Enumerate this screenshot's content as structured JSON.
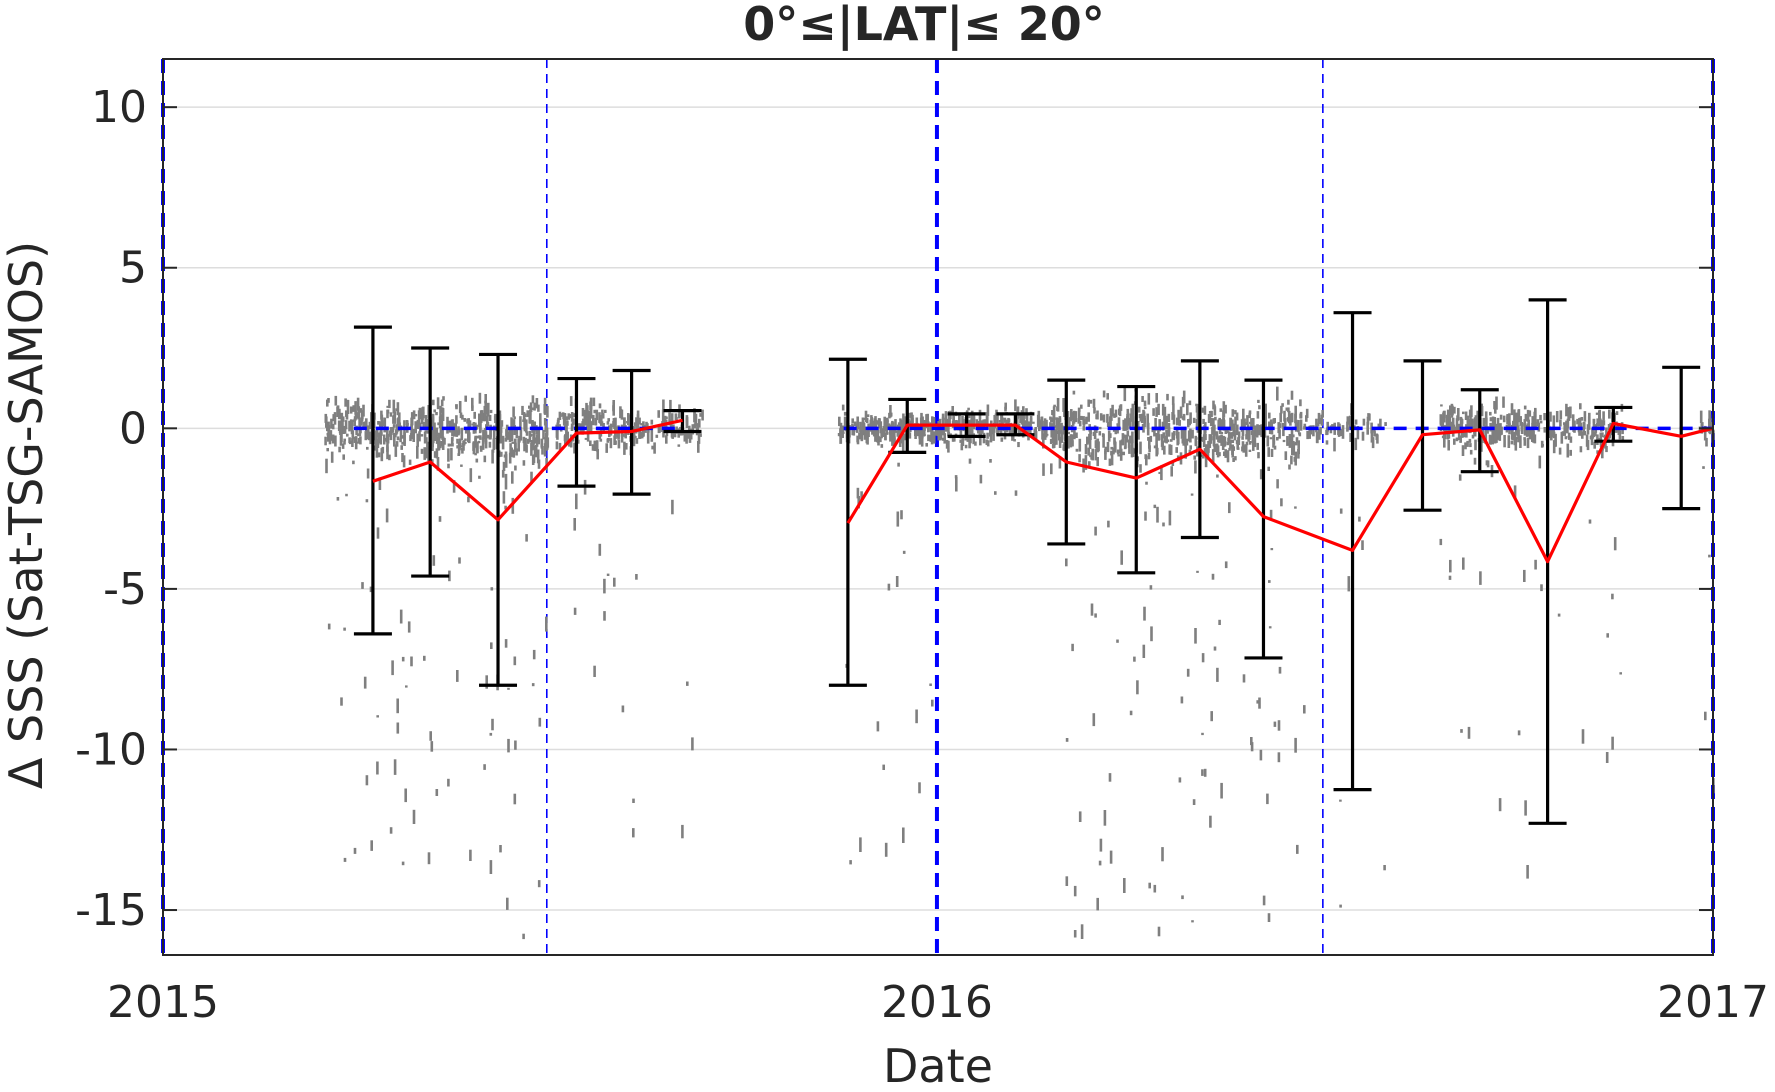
{
  "chart_data": {
    "type": "line",
    "title": "0°≤|LAT|≤ 20°",
    "xlabel": "Date",
    "ylabel": "Δ SSS (Sat-TSG-SAMOS)",
    "xlim": [
      "2015-01-01",
      "2017-01-01"
    ],
    "ylim": [
      -16.4,
      11.5
    ],
    "x_ticks": [
      {
        "date": "2015-01-01",
        "label": "2015"
      },
      {
        "date": "2016-01-01",
        "label": "2016"
      },
      {
        "date": "2017-01-01",
        "label": "2017"
      }
    ],
    "y_ticks": [
      {
        "value": 10,
        "label": "10"
      },
      {
        "value": 5,
        "label": "5"
      },
      {
        "value": 0,
        "label": "0"
      },
      {
        "value": -5,
        "label": "-5"
      },
      {
        "value": -10,
        "label": "-10"
      },
      {
        "value": -15,
        "label": "-15"
      }
    ],
    "grid": "horizontal",
    "colors": {
      "mean_line": "#ff0000",
      "error_bars": "#000000",
      "points": "#7f7f7f",
      "reference_lines": "#0000ff",
      "grid": "#dddddd",
      "axes": "#262626"
    },
    "vertical_markers": [
      {
        "date": "2015-01-01",
        "style": "thick-dashed"
      },
      {
        "date": "2015-07-01",
        "style": "thin-dashed"
      },
      {
        "date": "2016-01-01",
        "style": "thick-dashed"
      },
      {
        "date": "2016-07-01",
        "style": "thin-dashed"
      },
      {
        "date": "2017-01-01",
        "style": "thick-dashed"
      }
    ],
    "zero_reference": {
      "y": 0,
      "segments": [
        {
          "start": "2015-04-01",
          "end": "2015-09-01"
        },
        {
          "start": "2015-11-18",
          "end": "2017-01-01"
        }
      ]
    },
    "mean_series": [
      {
        "x": "2015-04-10",
        "y": -1.65
      },
      {
        "x": "2015-05-07",
        "y": -1.05
      },
      {
        "x": "2015-06-08",
        "y": -2.85
      },
      {
        "x": "2015-07-15",
        "y": -0.15
      },
      {
        "x": "2015-08-10",
        "y": -0.1
      },
      {
        "x": "2015-09-03",
        "y": 0.25
      }
    ],
    "mean_series_2": [
      {
        "x": "2015-11-20",
        "y": -2.95
      },
      {
        "x": "2015-12-18",
        "y": 0.1
      },
      {
        "x": "2016-01-15",
        "y": 0.1
      },
      {
        "x": "2016-02-07",
        "y": 0.1
      },
      {
        "x": "2016-03-02",
        "y": -1.05
      },
      {
        "x": "2016-04-04",
        "y": -1.55
      },
      {
        "x": "2016-05-04",
        "y": -0.65
      },
      {
        "x": "2016-06-03",
        "y": -2.75
      },
      {
        "x": "2016-07-15",
        "y": -3.8
      },
      {
        "x": "2016-08-17",
        "y": -0.2
      },
      {
        "x": "2016-09-13",
        "y": -0.05
      },
      {
        "x": "2016-10-15",
        "y": -4.15
      },
      {
        "x": "2016-11-15",
        "y": 0.15
      },
      {
        "x": "2016-12-17",
        "y": -0.25
      },
      {
        "x": "2017-01-01",
        "y": 0.0
      }
    ],
    "error_bars": [
      {
        "x": "2015-04-10",
        "low": -6.4,
        "high": 3.15
      },
      {
        "x": "2015-05-07",
        "low": -4.6,
        "high": 2.5
      },
      {
        "x": "2015-06-08",
        "low": -8.0,
        "high": 2.3
      },
      {
        "x": "2015-07-15",
        "low": -1.8,
        "high": 1.55
      },
      {
        "x": "2015-08-10",
        "low": -2.05,
        "high": 1.8
      },
      {
        "x": "2015-09-03",
        "low": -0.1,
        "high": 0.55
      },
      {
        "x": "2015-11-20",
        "low": -8.0,
        "high": 2.15
      },
      {
        "x": "2015-12-18",
        "low": -0.75,
        "high": 0.9
      },
      {
        "x": "2016-01-15",
        "low": -0.25,
        "high": 0.45
      },
      {
        "x": "2016-02-07",
        "low": -0.2,
        "high": 0.45
      },
      {
        "x": "2016-03-02",
        "low": -3.6,
        "high": 1.5
      },
      {
        "x": "2016-04-04",
        "low": -4.5,
        "high": 1.3
      },
      {
        "x": "2016-05-04",
        "low": -3.4,
        "high": 2.1
      },
      {
        "x": "2016-06-03",
        "low": -7.15,
        "high": 1.5
      },
      {
        "x": "2016-07-15",
        "low": -11.25,
        "high": 3.6
      },
      {
        "x": "2016-08-17",
        "low": -2.55,
        "high": 2.1
      },
      {
        "x": "2016-09-13",
        "low": -1.35,
        "high": 1.2
      },
      {
        "x": "2016-10-15",
        "low": -12.3,
        "high": 4.0
      },
      {
        "x": "2016-11-15",
        "low": -0.4,
        "high": 0.65
      },
      {
        "x": "2016-12-17",
        "low": -2.5,
        "high": 1.9
      }
    ],
    "scatter_clusters": [
      {
        "start": "2015-03-18",
        "end": "2015-04-20",
        "center": 0.0,
        "spread": 0.5,
        "n": 170,
        "outlier_min": -14.5,
        "outliers": 24
      },
      {
        "start": "2015-04-20",
        "end": "2015-05-30",
        "center": -0.1,
        "spread": 0.55,
        "n": 200,
        "outlier_min": -15.5,
        "outliers": 28
      },
      {
        "start": "2015-05-30",
        "end": "2015-07-01",
        "center": -0.2,
        "spread": 0.6,
        "n": 170,
        "outlier_min": -16.0,
        "outliers": 32
      },
      {
        "start": "2015-07-05",
        "end": "2015-08-05",
        "center": 0.05,
        "spread": 0.45,
        "n": 130,
        "outlier_min": -9.0,
        "outliers": 10
      },
      {
        "start": "2015-08-05",
        "end": "2015-09-12",
        "center": 0.0,
        "spread": 0.4,
        "n": 110,
        "outlier_min": -14.8,
        "outliers": 8
      },
      {
        "start": "2015-11-15",
        "end": "2016-01-01",
        "center": 0.0,
        "spread": 0.3,
        "n": 200,
        "outlier_min": -15.0,
        "outliers": 20
      },
      {
        "start": "2016-01-01",
        "end": "2016-02-28",
        "center": 0.05,
        "spread": 0.35,
        "n": 260,
        "outlier_min": -3.0,
        "outliers": 10
      },
      {
        "start": "2016-02-28",
        "end": "2016-06-20",
        "center": -0.1,
        "spread": 0.6,
        "n": 520,
        "outlier_min": -16.0,
        "outliers": 90
      },
      {
        "start": "2016-06-20",
        "end": "2016-07-30",
        "center": 0.0,
        "spread": 0.3,
        "n": 60,
        "outlier_min": -16.5,
        "outliers": 8
      },
      {
        "start": "2016-08-25",
        "end": "2016-10-05",
        "center": 0.05,
        "spread": 0.4,
        "n": 190,
        "outlier_min": -14.0,
        "outliers": 18
      },
      {
        "start": "2016-10-05",
        "end": "2016-11-20",
        "center": 0.0,
        "spread": 0.45,
        "n": 150,
        "outlier_min": -12.0,
        "outliers": 12
      },
      {
        "start": "2016-12-25",
        "end": "2017-01-01",
        "center": 0.0,
        "spread": 0.3,
        "n": 20,
        "outlier_min": -12.5,
        "outliers": 4
      }
    ]
  }
}
